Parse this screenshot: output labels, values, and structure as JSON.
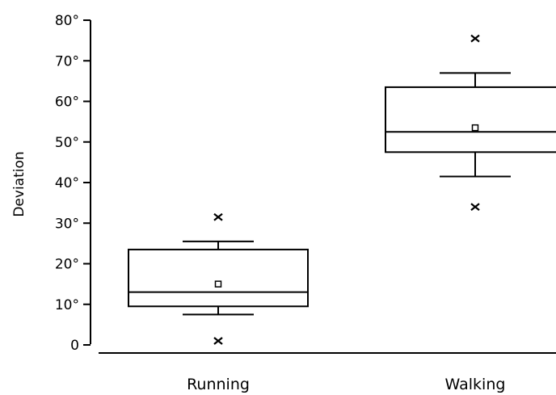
{
  "chart_data": {
    "type": "boxplot",
    "ylabel": "Deviation",
    "ylim": [
      0,
      80
    ],
    "yticks": [
      "0",
      "10°",
      "20°",
      "30°",
      "40°",
      "50°",
      "60°",
      "70°",
      "80°"
    ],
    "yticks_values": [
      0,
      10,
      20,
      30,
      40,
      50,
      60,
      70,
      80
    ],
    "categories": [
      "Running",
      "Walking"
    ],
    "series": [
      {
        "category": "Running",
        "whisker_low": 7.5,
        "q1": 9.5,
        "median": 13,
        "q3": 23.5,
        "whisker_high": 25.5,
        "mean": 15,
        "outliers": [
          1,
          31.5
        ]
      },
      {
        "category": "Walking",
        "whisker_low": 41.5,
        "q1": 47.5,
        "median": 52.5,
        "q3": 63.5,
        "whisker_high": 67,
        "mean": 53.5,
        "outliers": [
          34,
          75.5
        ]
      }
    ],
    "grid": false,
    "colors": {
      "stroke": "#000000",
      "background": "#ffffff"
    }
  }
}
